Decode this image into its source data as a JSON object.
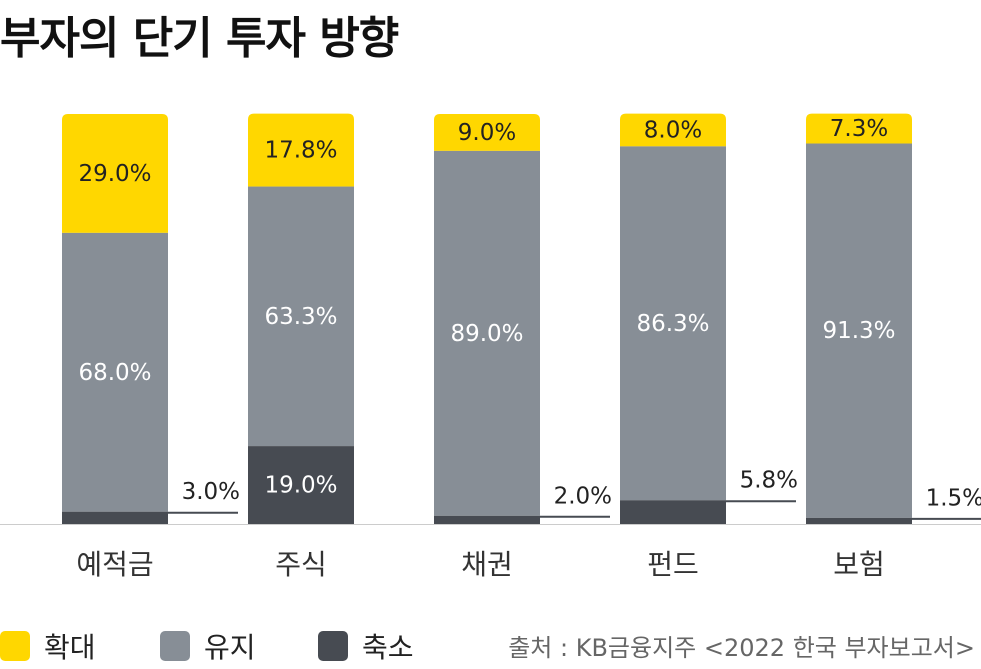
{
  "title": "부자의 단기 투자 방향",
  "source": "출처 : KB금융지주 <2022 한국 부자보고서>",
  "colors": {
    "expand": "#FFD700",
    "maintain": "#878E96",
    "reduce": "#474B52",
    "axis": "#cccccc"
  },
  "chart_data": {
    "type": "bar",
    "stacked": true,
    "categories": [
      "예적금",
      "주식",
      "채권",
      "펀드",
      "보험"
    ],
    "series": [
      {
        "name": "축소",
        "values": [
          3.0,
          19.0,
          2.0,
          5.8,
          1.5
        ],
        "labels": [
          "3.0%",
          "19.0%",
          "2.0%",
          "5.8%",
          "1.5%"
        ]
      },
      {
        "name": "유지",
        "values": [
          68.0,
          63.3,
          89.0,
          86.3,
          91.3
        ],
        "labels": [
          "68.0%",
          "63.3%",
          "89.0%",
          "86.3%",
          "91.3%"
        ]
      },
      {
        "name": "확대",
        "values": [
          29.0,
          17.8,
          9.0,
          8.0,
          7.3
        ],
        "labels": [
          "29.0%",
          "17.8%",
          "9.0%",
          "8.0%",
          "7.3%"
        ]
      }
    ],
    "ylim": [
      0,
      100
    ],
    "grid": false,
    "legend": "bottom-left"
  }
}
